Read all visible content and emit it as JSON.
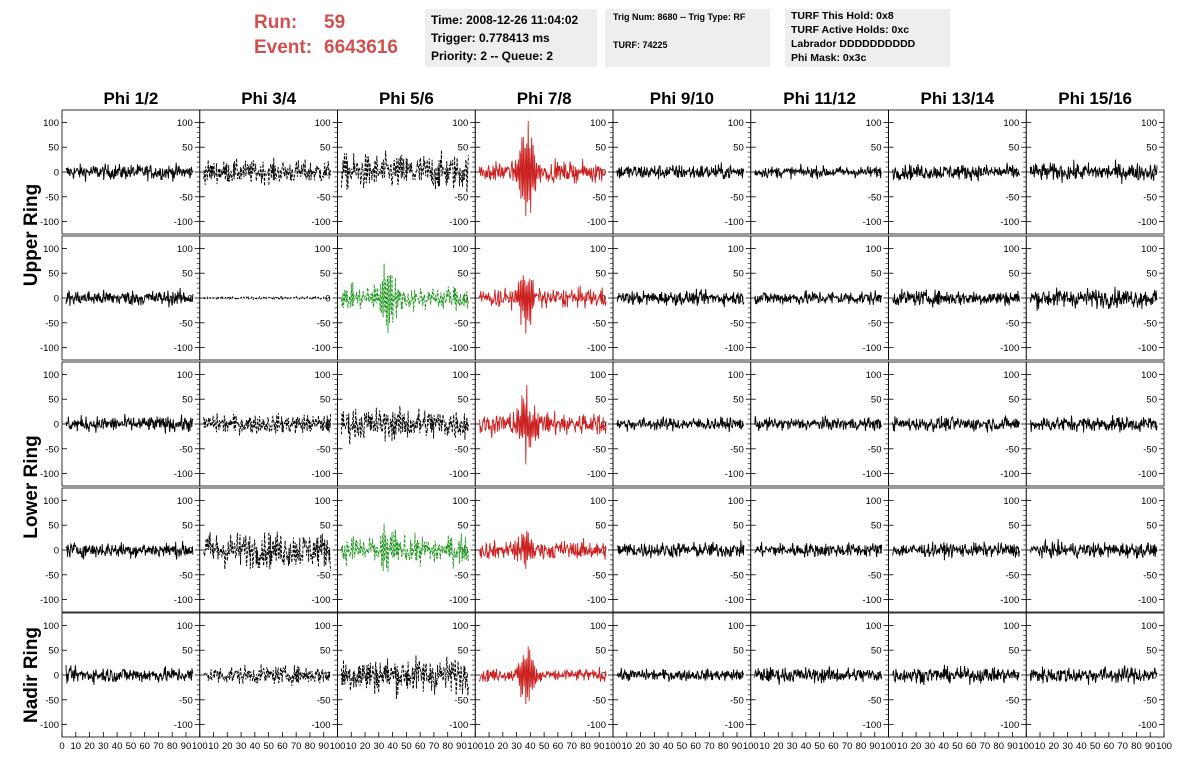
{
  "header": {
    "run_label": "Run:",
    "run_value": "59",
    "event_label": "Event:",
    "event_value": "6643616"
  },
  "info_time": {
    "time": "Time: 2008-12-26 11:04:02",
    "trigger": "Trigger: 0.778413 ms",
    "priority": "Priority: 2 -- Queue: 2"
  },
  "info_trig": {
    "trig": "Trig Num: 8680 -- Trig Type: RF",
    "turf": "TURF: 74225"
  },
  "info_turf": {
    "hold": "TURF This Hold: 0x8",
    "active": "TURF Active Holds: 0xc",
    "labrador": "Labrador DDDDDDDDDD",
    "mask": "Phi Mask: 0x3c"
  },
  "colors": {
    "run_text": "#d05050",
    "trace_default": "#000000",
    "trace_red": "#cc2222",
    "trace_green": "#229922",
    "info_bg": "#eeeeee"
  },
  "chart_data": {
    "type": "line",
    "columns": [
      "Phi 1/2",
      "Phi 3/4",
      "Phi 5/6",
      "Phi 7/8",
      "Phi 9/10",
      "Phi 11/12",
      "Phi 13/14",
      "Phi 15/16"
    ],
    "rings": [
      {
        "label": "Upper Ring",
        "rows": [
          0,
          1
        ]
      },
      {
        "label": "Lower Ring",
        "rows": [
          2,
          3
        ]
      },
      {
        "label": "Nadir Ring",
        "rows": [
          4
        ]
      }
    ],
    "x_ticks": [
      "0",
      "10",
      "20",
      "30",
      "40",
      "50",
      "60",
      "70",
      "80",
      "90",
      "100"
    ],
    "xlim": [
      0,
      100
    ],
    "y_ticks": [
      "100",
      "50",
      "0",
      "-50",
      "-100"
    ],
    "ylim": [
      -125,
      125
    ],
    "panels": [
      [
        {
          "amp": 12,
          "style": "solid",
          "color": "black",
          "burst": 0
        },
        {
          "amp": 18,
          "style": "dashed",
          "color": "black",
          "burst": 0
        },
        {
          "amp": 28,
          "style": "dashed",
          "color": "black",
          "burst": 0
        },
        {
          "amp": 15,
          "style": "solid",
          "color": "red",
          "burst": 95
        },
        {
          "amp": 12,
          "style": "solid",
          "color": "black",
          "burst": 0
        },
        {
          "amp": 9,
          "style": "solid",
          "color": "black",
          "burst": 0
        },
        {
          "amp": 12,
          "style": "solid",
          "color": "black",
          "burst": 0
        },
        {
          "amp": 14,
          "style": "solid",
          "color": "black",
          "burst": 0
        }
      ],
      [
        {
          "amp": 12,
          "style": "solid",
          "color": "black",
          "burst": 0
        },
        {
          "amp": 2,
          "style": "dashed",
          "color": "black",
          "burst": 0
        },
        {
          "amp": 18,
          "style": "dashed",
          "color": "green",
          "burst": 60
        },
        {
          "amp": 15,
          "style": "solid",
          "color": "red",
          "burst": 60
        },
        {
          "amp": 11,
          "style": "solid",
          "color": "black",
          "burst": 0
        },
        {
          "amp": 11,
          "style": "solid",
          "color": "black",
          "burst": 0
        },
        {
          "amp": 12,
          "style": "solid",
          "color": "black",
          "burst": 0
        },
        {
          "amp": 15,
          "style": "solid",
          "color": "black",
          "burst": 0
        }
      ],
      [
        {
          "amp": 12,
          "style": "solid",
          "color": "black",
          "burst": 0
        },
        {
          "amp": 15,
          "style": "dashed",
          "color": "black",
          "burst": 0
        },
        {
          "amp": 25,
          "style": "dashed",
          "color": "black",
          "burst": 0
        },
        {
          "amp": 18,
          "style": "solid",
          "color": "red",
          "burst": 65
        },
        {
          "amp": 10,
          "style": "solid",
          "color": "black",
          "burst": 0
        },
        {
          "amp": 10,
          "style": "solid",
          "color": "black",
          "burst": 0
        },
        {
          "amp": 11,
          "style": "solid",
          "color": "black",
          "burst": 0
        },
        {
          "amp": 12,
          "style": "solid",
          "color": "black",
          "burst": 0
        }
      ],
      [
        {
          "amp": 12,
          "style": "solid",
          "color": "black",
          "burst": 0
        },
        {
          "amp": 28,
          "style": "dashed",
          "color": "black",
          "burst": 0
        },
        {
          "amp": 22,
          "style": "dashed",
          "color": "green",
          "burst": 30
        },
        {
          "amp": 14,
          "style": "solid",
          "color": "red",
          "burst": 40
        },
        {
          "amp": 12,
          "style": "solid",
          "color": "black",
          "burst": 0
        },
        {
          "amp": 11,
          "style": "solid",
          "color": "black",
          "burst": 0
        },
        {
          "amp": 11,
          "style": "solid",
          "color": "black",
          "burst": 0
        },
        {
          "amp": 12,
          "style": "solid",
          "color": "black",
          "burst": 0
        }
      ],
      [
        {
          "amp": 12,
          "style": "solid",
          "color": "black",
          "burst": 0
        },
        {
          "amp": 14,
          "style": "dashed",
          "color": "black",
          "burst": 0
        },
        {
          "amp": 28,
          "style": "dashed",
          "color": "black",
          "burst": 0
        },
        {
          "amp": 10,
          "style": "solid",
          "color": "red",
          "burst": 55
        },
        {
          "amp": 9,
          "style": "solid",
          "color": "black",
          "burst": 0
        },
        {
          "amp": 12,
          "style": "solid",
          "color": "black",
          "burst": 0
        },
        {
          "amp": 12,
          "style": "solid",
          "color": "black",
          "burst": 0
        },
        {
          "amp": 13,
          "style": "solid",
          "color": "black",
          "burst": 0
        }
      ]
    ]
  }
}
